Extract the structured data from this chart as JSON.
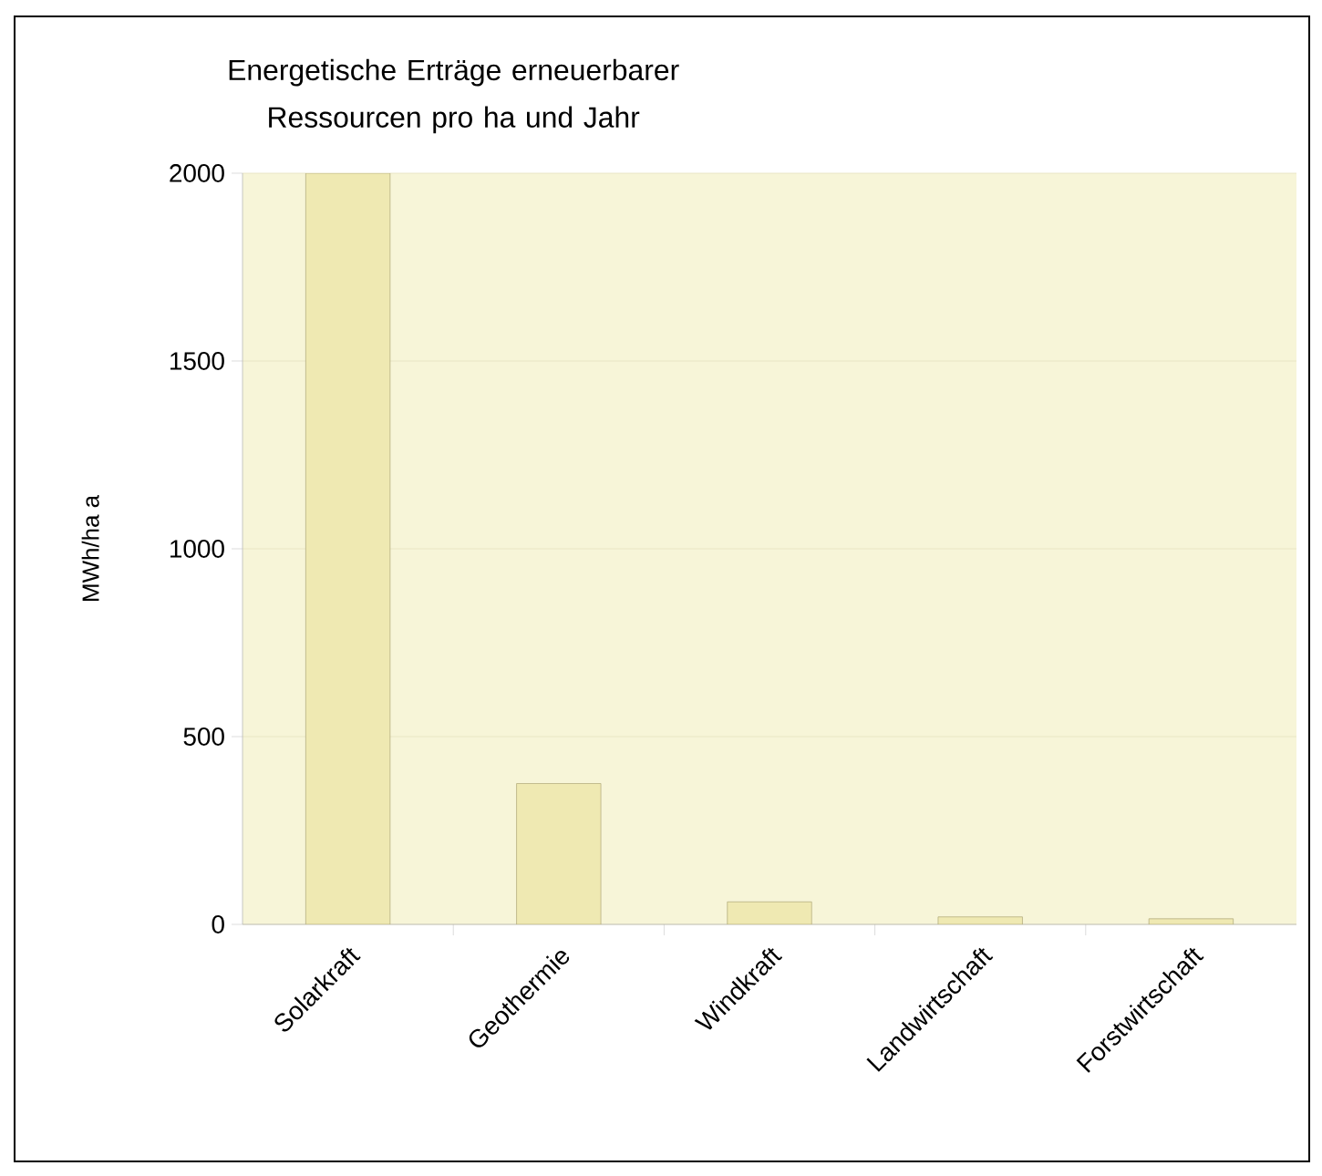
{
  "chart_data": {
    "type": "bar",
    "title": "Energetische Erträge erneuerbarer Ressourcen pro ha und Jahr",
    "ylabel": "MWh/ha a",
    "categories": [
      "Solarkraft",
      "Geothermie",
      "Windkraft",
      "Landwirtschaft",
      "Forstwirtschaft"
    ],
    "values": [
      2000,
      375,
      60,
      20,
      15
    ],
    "color": "#efe9b2",
    "ylim": [
      0,
      2000
    ],
    "yticks": [
      0,
      500,
      1000,
      1500,
      2000
    ],
    "grid": "y"
  }
}
